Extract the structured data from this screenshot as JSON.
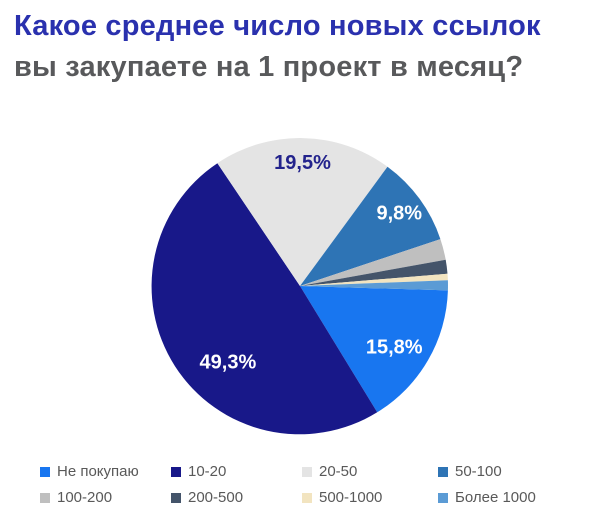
{
  "title": {
    "line1": "Какое среднее число новых ссылок",
    "line2": "вы закупаете на 1 проект в месяц?",
    "line1_color": "#2A31AE",
    "line2_color": "#58595B"
  },
  "chart_data": {
    "type": "pie",
    "title": "Какое среднее число новых ссылок вы закупаете на 1 проект в месяц?",
    "direction": "clockwise",
    "start_angle_deg": 91.7,
    "legend_position": "bottom",
    "legend_text_color": "#595959",
    "slices": [
      {
        "category": "Не покупаю",
        "value": 15.8,
        "label": "15,8%",
        "color": "#1876F0",
        "label_color": "#FFFFFF"
      },
      {
        "category": "10-20",
        "value": 49.3,
        "label": "49,3%",
        "color": "#181889",
        "label_color": "#FFFFFF"
      },
      {
        "category": "20-50",
        "value": 19.5,
        "label": "19,5%",
        "color": "#E4E4E4",
        "label_color": "#23238C"
      },
      {
        "category": "50-100",
        "value": 9.8,
        "label": "9,8%",
        "color": "#2E74B5",
        "label_color": "#FFFFFF"
      },
      {
        "category": "100-200",
        "value": 2.3,
        "label": "",
        "color": "#BFBFBF",
        "label_color": ""
      },
      {
        "category": "200-500",
        "value": 1.5,
        "label": "",
        "color": "#44546A",
        "label_color": ""
      },
      {
        "category": "500-1000",
        "value": 0.7,
        "label": "",
        "color": "#F2E4C0",
        "label_color": ""
      },
      {
        "category": "Более 1000",
        "value": 1.1,
        "label": "",
        "color": "#5B9BD5",
        "label_color": ""
      }
    ]
  }
}
